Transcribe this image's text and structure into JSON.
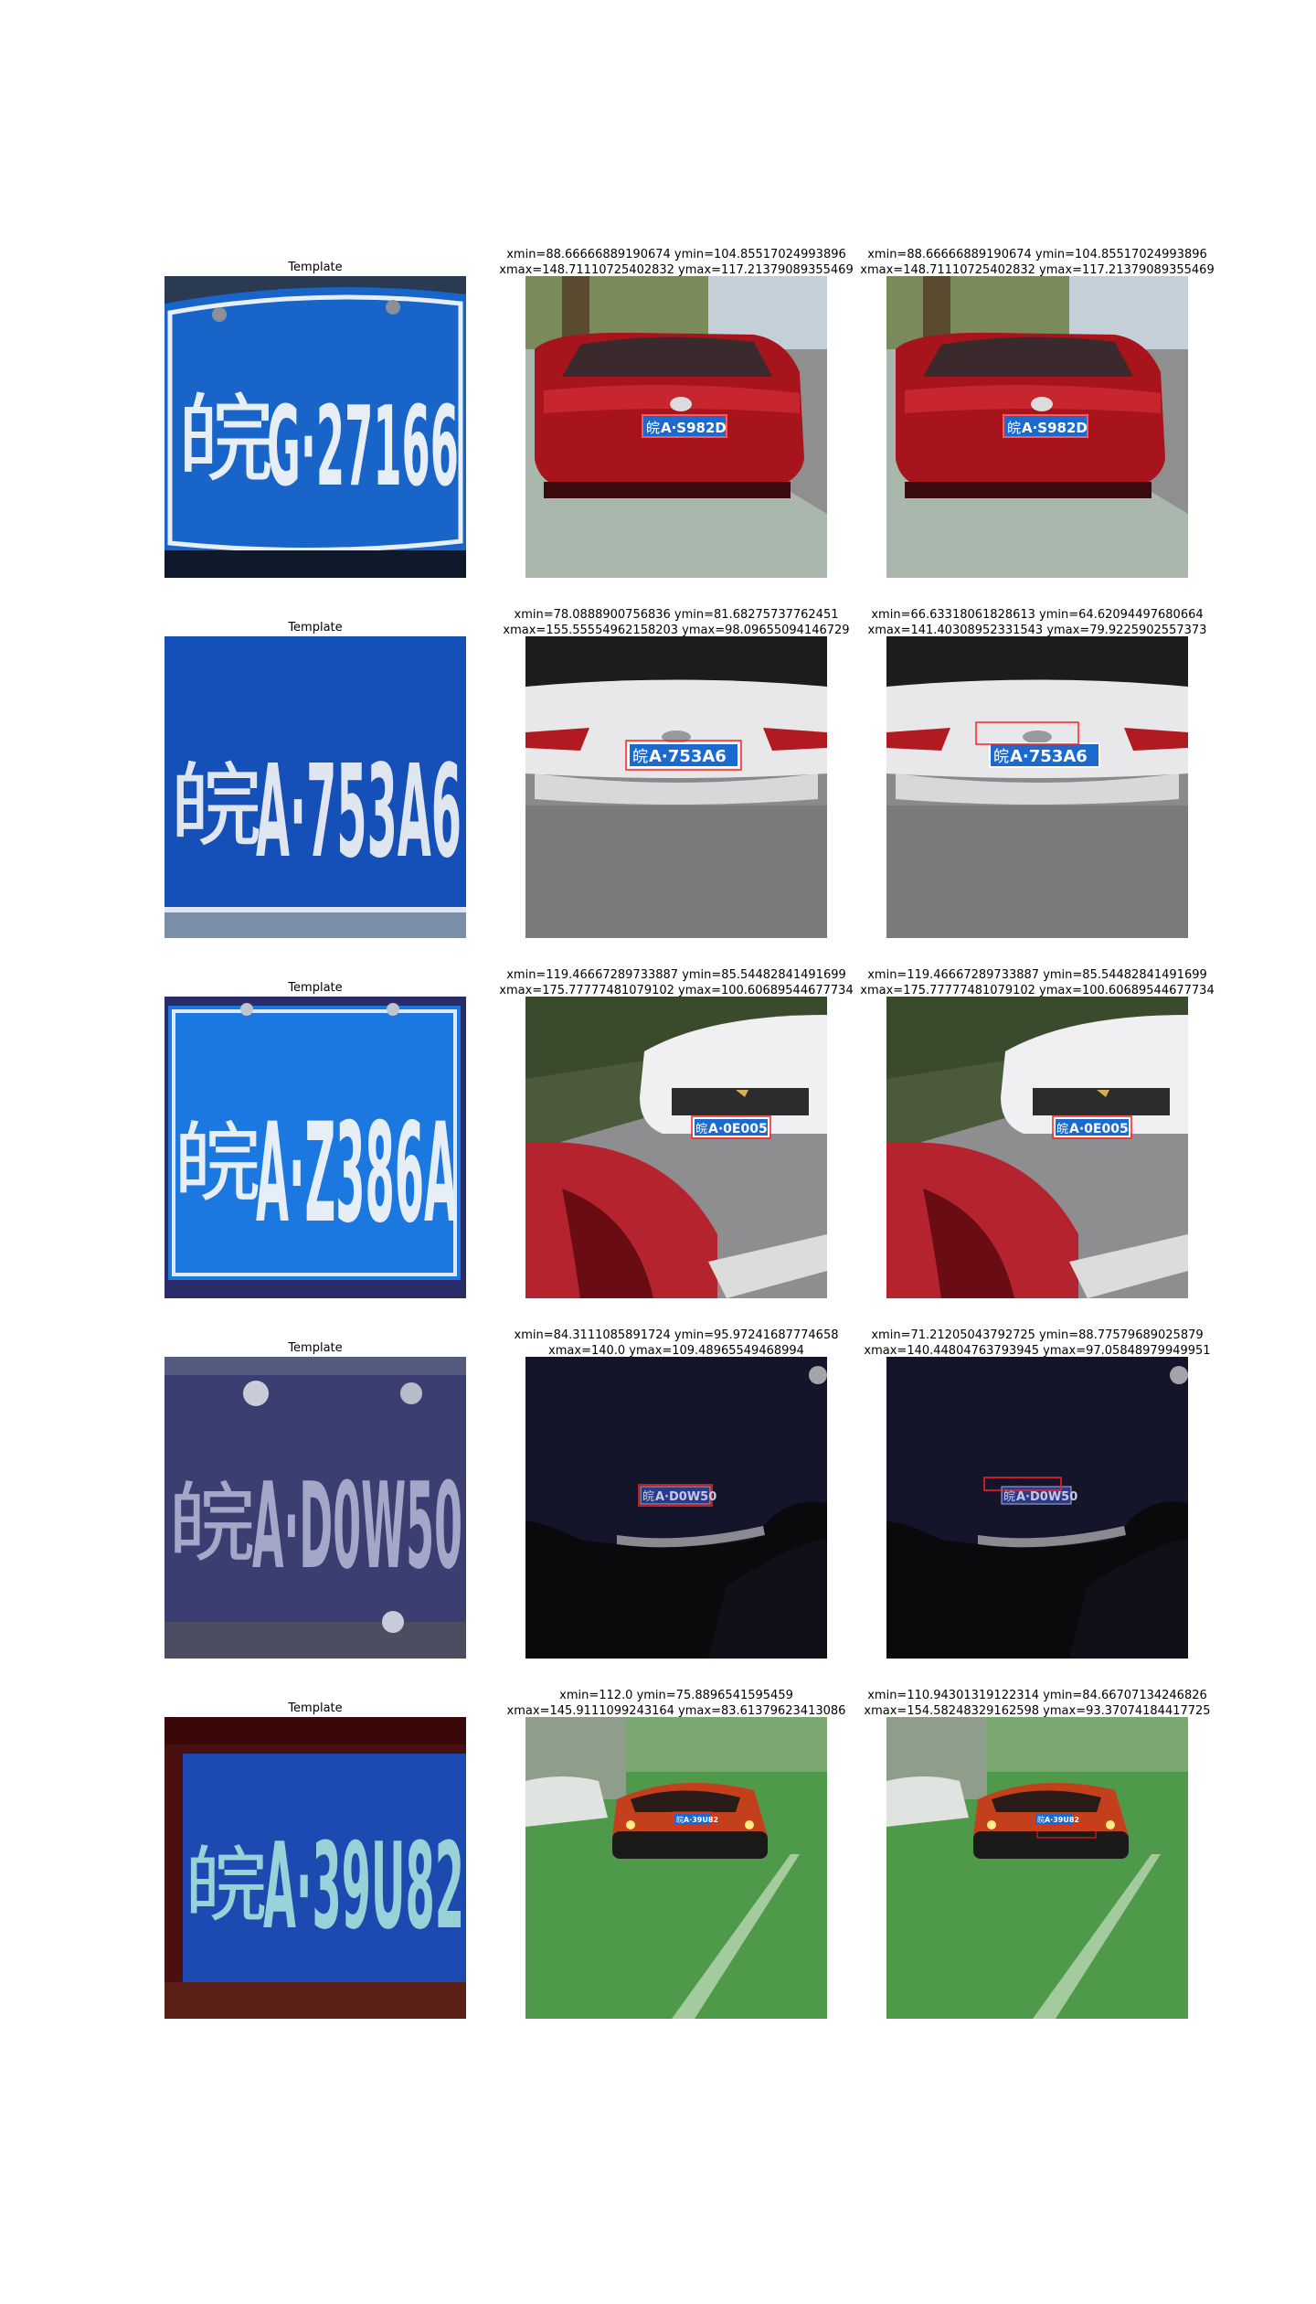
{
  "rows": [
    {
      "template": {
        "title": "Template",
        "plate": {
          "prefix": "皖",
          "text": "G·27166"
        }
      },
      "left": {
        "line1": "xmin=88.66666889190674 ymin=104.85517024993896",
        "line2": "xmax=148.71110725402832 ymax=117.21379089355469",
        "plate": {
          "prefix": "皖",
          "text": "A·S982D"
        }
      },
      "right": {
        "line1": "xmin=88.66666889190674 ymin=104.85517024993896",
        "line2": "xmax=148.71110725402832 ymax=117.21379089355469",
        "plate": {
          "prefix": "皖",
          "text": "A·S982D"
        }
      }
    },
    {
      "template": {
        "title": "Template",
        "plate": {
          "prefix": "皖",
          "text": "A·753A6"
        }
      },
      "left": {
        "line1": "xmin=78.0888900756836 ymin=81.68275737762451",
        "line2": "xmax=155.55554962158203 ymax=98.09655094146729",
        "plate": {
          "prefix": "皖",
          "text": "A·753A6"
        }
      },
      "right": {
        "line1": "xmin=66.63318061828613 ymin=64.62094497680664",
        "line2": "xmax=141.40308952331543 ymax=79.9225902557373",
        "plate": {
          "prefix": "皖",
          "text": "A·753A6"
        }
      }
    },
    {
      "template": {
        "title": "Template",
        "plate": {
          "prefix": "皖",
          "text": "A·Z386A"
        }
      },
      "left": {
        "line1": "xmin=119.46667289733887 ymin=85.54482841491699",
        "line2": "xmax=175.77777481079102 ymax=100.60689544677734",
        "plate": {
          "prefix": "皖",
          "text": "A·0E005"
        }
      },
      "right": {
        "line1": "xmin=119.46667289733887 ymin=85.54482841491699",
        "line2": "xmax=175.77777481079102 ymax=100.60689544677734",
        "plate": {
          "prefix": "皖",
          "text": "A·0E005"
        }
      }
    },
    {
      "template": {
        "title": "Template",
        "plate": {
          "prefix": "皖",
          "text": "A·D0W50"
        }
      },
      "left": {
        "line1": "xmin=84.3111085891724 ymin=95.97241687774658",
        "line2": "xmax=140.0 ymax=109.48965549468994",
        "plate": {
          "prefix": "皖",
          "text": "A·D0W50"
        }
      },
      "right": {
        "line1": "xmin=71.21205043792725 ymin=88.77579689025879",
        "line2": "xmax=140.44804763793945 ymax=97.05848979949951",
        "plate": {
          "prefix": "皖",
          "text": "A·D0W50"
        }
      }
    },
    {
      "template": {
        "title": "Template",
        "plate": {
          "prefix": "皖",
          "text": "A·39U82"
        }
      },
      "left": {
        "line1": "xmin=112.0 ymin=75.8896541595459",
        "line2": "xmax=145.9111099243164 ymax=83.61379623413086",
        "plate": {
          "prefix": "皖",
          "text": "A·39U82"
        }
      },
      "right": {
        "line1": "xmin=110.94301319122314 ymin=84.66707134246826",
        "line2": "xmax=154.58248329162598 ymax=93.37074184417725",
        "plate": {
          "prefix": "皖",
          "text": "A·39U82"
        }
      }
    }
  ]
}
